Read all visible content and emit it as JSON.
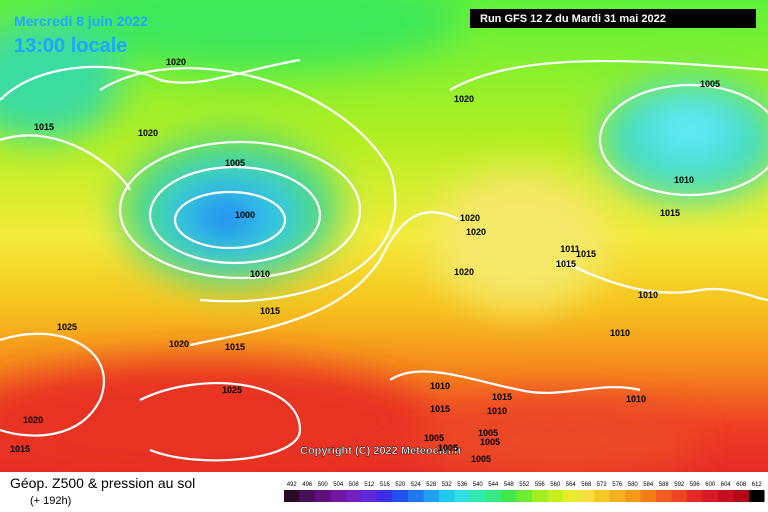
{
  "header": {
    "date": "Mercredi 8 juin 2022",
    "time": "13:00 locale",
    "run": "Run GFS 12 Z du Mardi 31 mai 2022"
  },
  "isobar_labels": [
    1020,
    1015,
    1020,
    1005,
    1000,
    1010,
    1015,
    1025,
    1020,
    1015,
    1025,
    1020,
    1015,
    1020,
    1005,
    1010,
    1015,
    1020,
    1020,
    1011,
    1015,
    1015,
    1020,
    1010,
    1010,
    1010,
    1015,
    1015,
    1010,
    1010,
    1005,
    1005,
    1005,
    1005,
    1005
  ],
  "copyright": "Copyright (C) 2022 Meteociel.fr",
  "footer": {
    "title": "Géop. Z500 & pression au sol",
    "lead": "(+ 192h)"
  },
  "scale": [
    492,
    496,
    500,
    504,
    508,
    512,
    516,
    520,
    524,
    528,
    532,
    536,
    540,
    544,
    548,
    552,
    556,
    560,
    564,
    568,
    572,
    576,
    580,
    584,
    588,
    592,
    596,
    600,
    604,
    608,
    612
  ]
}
